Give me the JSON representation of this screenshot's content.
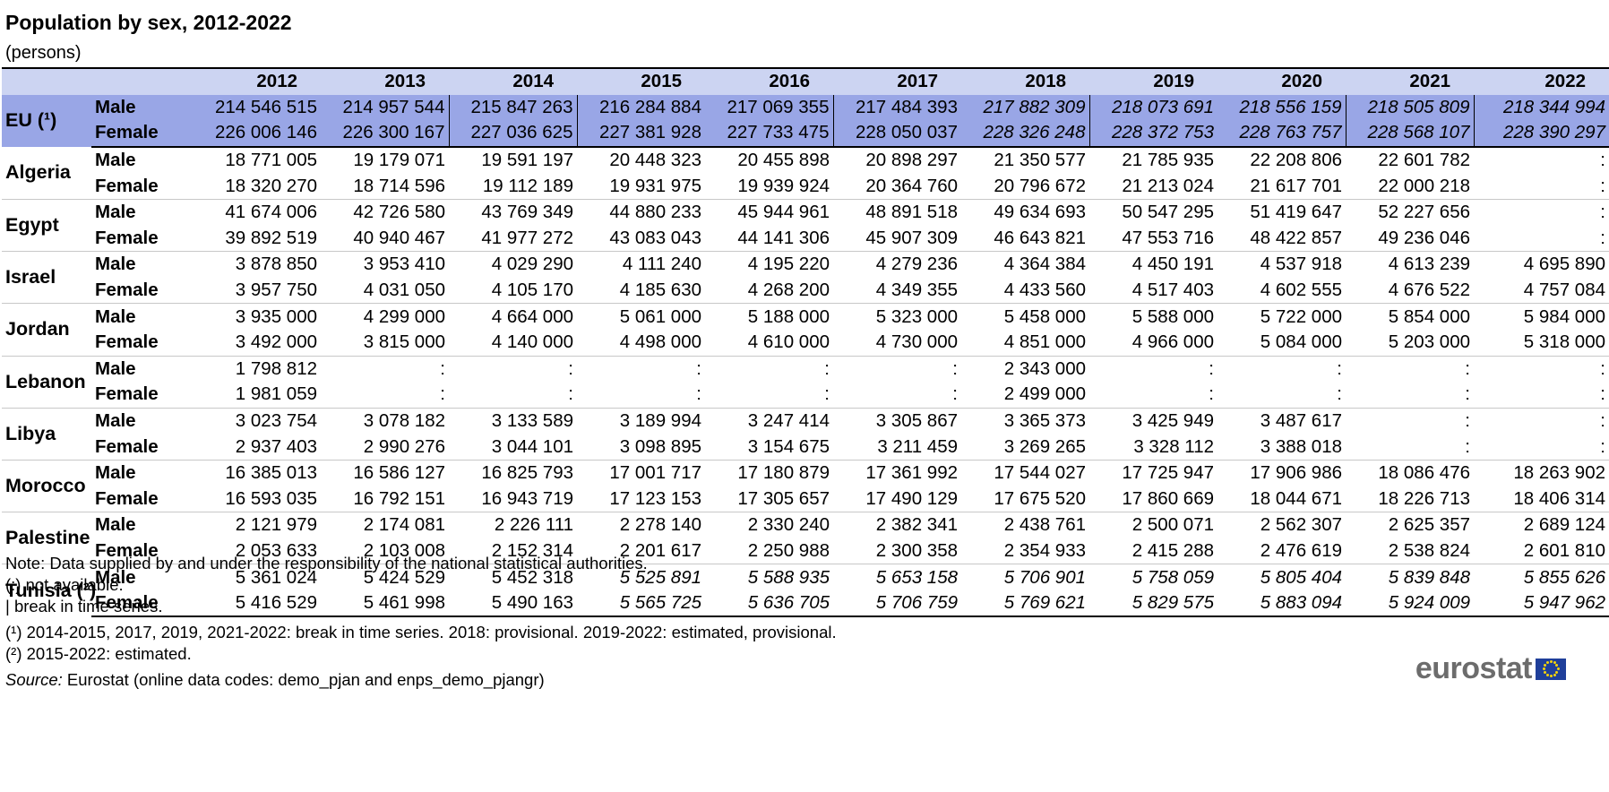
{
  "title": "Population by sex, 2012-2022",
  "subtitle": "(persons)",
  "years": [
    "2012",
    "2013",
    "2014",
    "2015",
    "2016",
    "2017",
    "2018",
    "2019",
    "2020",
    "2021",
    "2022"
  ],
  "rows": [
    {
      "country": "EU (¹)",
      "eu": true,
      "male": [
        "214 546 515",
        "214 957 544",
        "215 847 263",
        "216 284 884",
        "217 069 355",
        "217 484 393",
        "217 882 309",
        "218 073 691",
        "218 556 159",
        "218 505 809",
        "218 344 994"
      ],
      "female": [
        "226 006 146",
        "226 300 167",
        "227 036 625",
        "227 381 928",
        "227 733 475",
        "228 050 037",
        "228 326 248",
        "228 372 753",
        "228 763 757",
        "228 568 107",
        "228 390 297"
      ]
    },
    {
      "country": "Algeria",
      "male": [
        "18 771 005",
        "19 179 071",
        "19 591 197",
        "20 448 323",
        "20 455 898",
        "20 898 297",
        "21 350 577",
        "21 785 935",
        "22 208 806",
        "22 601 782",
        ":"
      ],
      "female": [
        "18 320 270",
        "18 714 596",
        "19 112 189",
        "19 931 975",
        "19 939 924",
        "20 364 760",
        "20 796 672",
        "21 213 024",
        "21 617 701",
        "22 000 218",
        ":"
      ]
    },
    {
      "country": "Egypt",
      "male": [
        "41 674 006",
        "42 726 580",
        "43 769 349",
        "44 880 233",
        "45 944 961",
        "48 891 518",
        "49 634 693",
        "50 547 295",
        "51 419 647",
        "52 227 656",
        ":"
      ],
      "female": [
        "39 892 519",
        "40 940 467",
        "41 977 272",
        "43 083 043",
        "44 141 306",
        "45 907 309",
        "46 643 821",
        "47 553 716",
        "48 422 857",
        "49 236 046",
        ":"
      ]
    },
    {
      "country": "Israel",
      "male": [
        "3 878 850",
        "3 953 410",
        "4 029 290",
        "4 111 240",
        "4 195 220",
        "4 279 236",
        "4 364 384",
        "4 450 191",
        "4 537 918",
        "4 613 239",
        "4 695 890"
      ],
      "female": [
        "3 957 750",
        "4 031 050",
        "4 105 170",
        "4 185 630",
        "4 268 200",
        "4 349 355",
        "4 433 560",
        "4 517 403",
        "4 602 555",
        "4 676 522",
        "4 757 084"
      ]
    },
    {
      "country": "Jordan",
      "male": [
        "3 935 000",
        "4 299 000",
        "4 664 000",
        "5 061 000",
        "5 188 000",
        "5 323 000",
        "5 458 000",
        "5 588 000",
        "5 722 000",
        "5 854 000",
        "5 984 000"
      ],
      "female": [
        "3 492 000",
        "3 815 000",
        "4 140 000",
        "4 498 000",
        "4 610 000",
        "4 730 000",
        "4 851 000",
        "4 966 000",
        "5 084 000",
        "5 203 000",
        "5 318 000"
      ]
    },
    {
      "country": "Lebanon",
      "male": [
        "1 798 812",
        ":",
        ":",
        ":",
        ":",
        ":",
        "2 343 000",
        ":",
        ":",
        ":",
        ":"
      ],
      "female": [
        "1 981 059",
        ":",
        ":",
        ":",
        ":",
        ":",
        "2 499 000",
        ":",
        ":",
        ":",
        ":"
      ]
    },
    {
      "country": "Libya",
      "male": [
        "3 023 754",
        "3 078 182",
        "3 133 589",
        "3 189 994",
        "3 247 414",
        "3 305 867",
        "3 365 373",
        "3 425 949",
        "3 487 617",
        ":",
        ":"
      ],
      "female": [
        "2 937 403",
        "2 990 276",
        "3 044 101",
        "3 098 895",
        "3 154 675",
        "3 211 459",
        "3 269 265",
        "3 328 112",
        "3 388 018",
        ":",
        ":"
      ]
    },
    {
      "country": "Morocco",
      "male": [
        "16 385 013",
        "16 586 127",
        "16 825 793",
        "17 001 717",
        "17 180 879",
        "17 361 992",
        "17 544 027",
        "17 725 947",
        "17 906 986",
        "18 086 476",
        "18 263 902"
      ],
      "female": [
        "16 593 035",
        "16 792 151",
        "16 943 719",
        "17 123 153",
        "17 305 657",
        "17 490 129",
        "17 675 520",
        "17 860 669",
        "18 044 671",
        "18 226 713",
        "18 406 314"
      ]
    },
    {
      "country": "Palestine",
      "male": [
        "2 121 979",
        "2 174 081",
        "2 226 111",
        "2 278 140",
        "2 330 240",
        "2 382 341",
        "2 438 761",
        "2 500 071",
        "2 562 307",
        "2 625 357",
        "2 689 124"
      ],
      "female": [
        "2 053 633",
        "2 103 008",
        "2 152 314",
        "2 201 617",
        "2 250 988",
        "2 300 358",
        "2 354 933",
        "2 415 288",
        "2 476 619",
        "2 538 824",
        "2 601 810"
      ]
    },
    {
      "country": "Tunisia (²)",
      "male": [
        "5 361 024",
        "5 424 529",
        "5 452 318",
        "5 525 891",
        "5 588 935",
        "5 653 158",
        "5 706 901",
        "5 758 059",
        "5 805 404",
        "5 839 848",
        "5 855 626"
      ],
      "female": [
        "5 416 529",
        "5 461 998",
        "5 490 163",
        "5 565 725",
        "5 636 705",
        "5 706 759",
        "5 769 621",
        "5 829 575",
        "5 883 094",
        "5 924 009",
        "5 947 962"
      ]
    }
  ],
  "sex_labels": {
    "male": "Male",
    "female": "Female"
  },
  "notes": {
    "note": "Note: Data supplied by and under the responsibility of the national statistical authorities.",
    "not_available": "(:) not available.",
    "break": "| break in time series.",
    "fn1": "(¹) 2014-2015, 2017, 2019, 2021-2022: break in time series. 2018: provisional. 2019-2022: estimated, provisional.",
    "fn2": "(²) 2015-2022: estimated.",
    "source_label": "Source:",
    "source_text": " Eurostat (online data codes: demo_pjan and enps_demo_pjangr)"
  },
  "logo_text": "eurostat",
  "colors": {
    "header": "#ccd4f2",
    "eu_row": "#99a6e6",
    "logo": "#6c6c6c",
    "flag": "#1f3f9a"
  }
}
